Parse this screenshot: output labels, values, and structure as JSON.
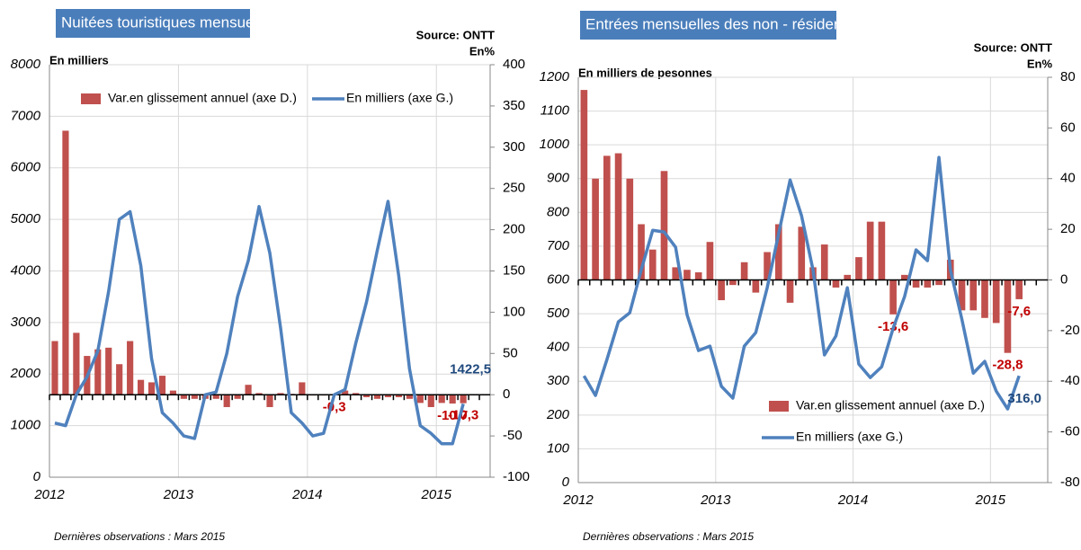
{
  "chart_data": [
    {
      "type": "bar-line",
      "title": "Nuitées touristiques mensuelles",
      "source": "Source: ONTT",
      "y_label": "En milliers",
      "y2_label": "En%",
      "footnote": "Dernières observations : Mars 2015",
      "legend": "top",
      "categories": [
        "2012",
        null,
        null,
        null,
        null,
        null,
        null,
        null,
        null,
        null,
        null,
        null,
        "2013",
        null,
        null,
        null,
        null,
        null,
        null,
        null,
        null,
        null,
        null,
        null,
        "2014",
        null,
        null,
        null,
        null,
        null,
        null,
        null,
        null,
        null,
        null,
        null,
        "2015",
        null,
        null
      ],
      "ylim": [
        0,
        8000
      ],
      "yticks": [
        0,
        1000,
        2000,
        3000,
        4000,
        5000,
        6000,
        7000,
        8000
      ],
      "y2lim": [
        -100,
        400
      ],
      "y2ticks": [
        -100,
        -50,
        0,
        50,
        100,
        150,
        200,
        250,
        300,
        350,
        400
      ],
      "grid": true,
      "series": [
        {
          "name": "Var.en glissement annuel (axe D.)",
          "kind": "bar",
          "axis": "y2",
          "color": "#c0504d",
          "values": [
            65,
            320,
            75,
            47,
            55,
            57,
            37,
            65,
            18,
            15,
            23,
            5,
            -5,
            -5,
            -5,
            -5,
            -15,
            -5,
            12,
            2,
            -15,
            2,
            1,
            15,
            -1,
            -1,
            -0.3,
            5,
            2,
            -3,
            -5,
            -3,
            -3,
            -5,
            -10,
            -15,
            -10,
            -10.7,
            -10.3
          ],
          "value_labels": [
            null,
            null,
            null,
            null,
            null,
            null,
            null,
            null,
            null,
            null,
            null,
            null,
            null,
            null,
            null,
            null,
            null,
            null,
            null,
            null,
            null,
            null,
            null,
            null,
            null,
            null,
            "-0,3",
            null,
            null,
            null,
            null,
            null,
            null,
            null,
            null,
            null,
            null,
            "-10,7",
            "-10,3"
          ]
        },
        {
          "name": "En milliers (axe G.)",
          "kind": "line",
          "color": "#4f81bd",
          "values": [
            1050,
            1000,
            1600,
            1950,
            2450,
            3600,
            5000,
            5150,
            4100,
            2300,
            1250,
            1050,
            800,
            750,
            1600,
            1650,
            2400,
            3500,
            4200,
            5250,
            4350,
            2900,
            1250,
            1050,
            800,
            850,
            1600,
            1700,
            2600,
            3400,
            4400,
            5350,
            3900,
            2100,
            1000,
            850,
            650,
            650,
            1422.5
          ],
          "value_labels": [
            null,
            null,
            null,
            null,
            null,
            null,
            null,
            null,
            null,
            null,
            null,
            null,
            null,
            null,
            null,
            null,
            null,
            null,
            null,
            null,
            null,
            null,
            null,
            null,
            null,
            null,
            null,
            null,
            null,
            null,
            null,
            null,
            null,
            null,
            null,
            null,
            null,
            null,
            "1422,5"
          ]
        }
      ]
    },
    {
      "type": "bar-line",
      "title": "Entrées mensuelles des non - résidents",
      "source": "Source: ONTT",
      "y_label": "En milliers de pesonnes",
      "y2_label": "En%",
      "footnote": "Dernières observations : Mars 2015",
      "legend": "bottom-right",
      "categories": [
        "2012",
        null,
        null,
        null,
        null,
        null,
        null,
        null,
        null,
        null,
        null,
        null,
        "2013",
        null,
        null,
        null,
        null,
        null,
        null,
        null,
        null,
        null,
        null,
        null,
        "2014",
        null,
        null,
        null,
        null,
        null,
        null,
        null,
        null,
        null,
        null,
        null,
        "2015",
        null,
        null
      ],
      "ylim": [
        0,
        1200
      ],
      "yticks": [
        0,
        100,
        200,
        300,
        400,
        500,
        600,
        700,
        800,
        900,
        1000,
        1100,
        1200
      ],
      "y2lim": [
        -80,
        80
      ],
      "y2ticks": [
        -80,
        -60,
        -40,
        -20,
        0,
        20,
        40,
        60,
        80
      ],
      "grid": true,
      "series": [
        {
          "name": "Var.en glissement annuel (axe D.)",
          "kind": "bar",
          "axis": "y2",
          "color": "#c0504d",
          "values": [
            75,
            40,
            49,
            50,
            40,
            22,
            12,
            43,
            5,
            4,
            3,
            15,
            -8,
            -2,
            7,
            -5,
            11,
            22,
            -9,
            21,
            5,
            14,
            -3,
            2,
            9,
            23,
            23,
            -13.6,
            2,
            -3,
            -3,
            -2,
            8,
            -12,
            -12,
            -15,
            -17,
            -28.8,
            -7.6
          ],
          "value_labels": [
            null,
            null,
            null,
            null,
            null,
            null,
            null,
            null,
            null,
            null,
            null,
            null,
            null,
            null,
            null,
            null,
            null,
            null,
            null,
            null,
            null,
            null,
            null,
            null,
            null,
            null,
            null,
            "-13,6",
            null,
            null,
            null,
            null,
            null,
            null,
            null,
            null,
            null,
            "-28,8",
            "-7,6"
          ]
        },
        {
          "name": "En milliers (axe G.)",
          "kind": "line",
          "color": "#4f81bd",
          "values": [
            316,
            258,
            364,
            476,
            503,
            630,
            747,
            742,
            697,
            497,
            391,
            404,
            285,
            250,
            404,
            444,
            577,
            737,
            896,
            790,
            630,
            378,
            434,
            577,
            351,
            311,
            343,
            457,
            551,
            689,
            657,
            963,
            630,
            484,
            324,
            359,
            271,
            218,
            316
          ],
          "value_labels": [
            null,
            null,
            null,
            null,
            null,
            null,
            null,
            null,
            null,
            null,
            null,
            null,
            null,
            null,
            null,
            null,
            null,
            null,
            null,
            null,
            null,
            null,
            null,
            null,
            null,
            null,
            null,
            null,
            null,
            null,
            null,
            null,
            null,
            null,
            null,
            null,
            null,
            null,
            "316,0"
          ]
        }
      ]
    }
  ]
}
